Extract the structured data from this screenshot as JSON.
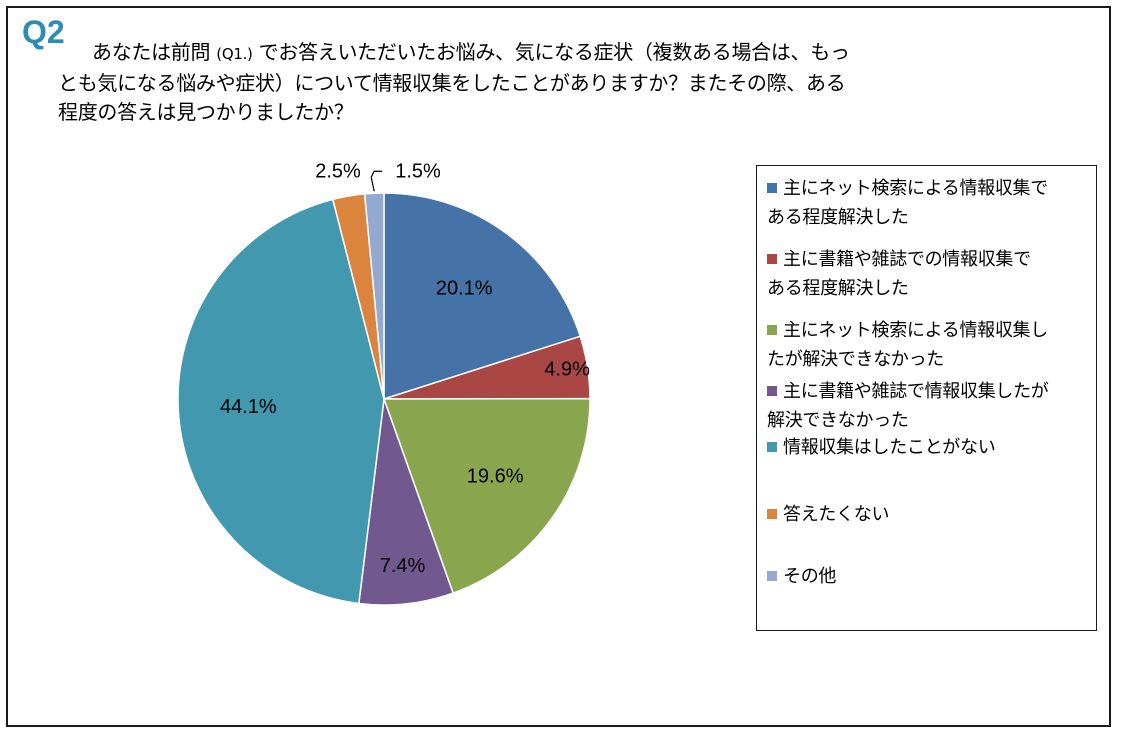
{
  "question": {
    "label": "Q2",
    "line1_a": "あなたは前問",
    "line1_q": "(Q1.)",
    "line1_b": "でお答えいただいたお悩み、気になる症状（複数ある場合は、もっ",
    "line2": "とも気になる悩みや症状）について情報収集をしたことがありますか？またその際、ある",
    "line3": "程度の答えは見つかりましたか？"
  },
  "chart_data": {
    "type": "pie",
    "start_angle_deg": 0,
    "direction": "clockwise",
    "legend_position": "right",
    "slices": [
      {
        "name": "主にネット検索による情報収集である程度解決した",
        "legend_lines": [
          "主にネット検索による情報収集で",
          "ある程度解決した"
        ],
        "value": 20.1,
        "label": "20.1%",
        "color": "#4572A7"
      },
      {
        "name": "主に書籍や雑誌での情報収集である程度解決した",
        "legend_lines": [
          "主に書籍や雑誌での情報収集で",
          "ある程度解決した"
        ],
        "value": 4.9,
        "label": "4.9%",
        "color": "#AA4643"
      },
      {
        "name": "主にネット検索による情報収集したが解決できなかった",
        "legend_lines": [
          "主にネット検索による情報収集し",
          "たが解決できなかった"
        ],
        "value": 19.6,
        "label": "19.6%",
        "color": "#89A54E"
      },
      {
        "name": "主に書籍や雑誌で情報収集したが解決できなかった",
        "legend_lines": [
          "主に書籍や雑誌で情報収集したが",
          "解決できなかった"
        ],
        "value": 7.4,
        "label": "7.4%",
        "color": "#71588F"
      },
      {
        "name": "情報収集はしたことがない",
        "legend_lines": [
          "情報収集はしたことがない"
        ],
        "value": 44.1,
        "label": "44.1%",
        "color": "#4198AF"
      },
      {
        "name": "答えたくない",
        "legend_lines": [
          "答えたくない"
        ],
        "value": 2.5,
        "label": "2.5%",
        "color": "#DB843D"
      },
      {
        "name": "その他",
        "legend_lines": [
          "その他"
        ],
        "value": 1.5,
        "label": "1.5%",
        "color": "#93A9CF"
      }
    ]
  }
}
